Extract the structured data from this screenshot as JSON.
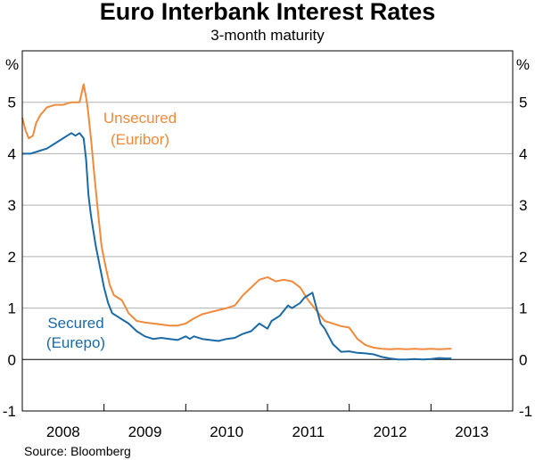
{
  "chart_data": {
    "type": "line",
    "title": "Euro Interbank Interest Rates",
    "subtitle": "3-month maturity",
    "y_unit_left": "%",
    "y_unit_right": "%",
    "ylim": [
      -1,
      6
    ],
    "yticks": [
      -1,
      0,
      1,
      2,
      3,
      4,
      5
    ],
    "xlim": [
      2007.5,
      2013.5
    ],
    "xtick_labels": [
      {
        "label": "2008",
        "x": 2008.0
      },
      {
        "label": "2009",
        "x": 2009.0
      },
      {
        "label": "2010",
        "x": 2010.0
      },
      {
        "label": "2011",
        "x": 2011.0
      },
      {
        "label": "2012",
        "x": 2012.0
      },
      {
        "label": "2013",
        "x": 2013.0
      }
    ],
    "year_dividers": [
      2008.5,
      2009.5,
      2010.5,
      2011.5,
      2012.5
    ],
    "gridlines": true,
    "source": "Source: Bloomberg",
    "annotations": [
      {
        "series": "Unsecured",
        "line1": "Unsecured",
        "line2": "(Euribor)"
      },
      {
        "series": "Secured",
        "line1": "Secured",
        "line2": "(Eurepo)"
      }
    ],
    "series": [
      {
        "name": "Unsecured",
        "label": "Unsecured (Euribor)",
        "color": "#f08a3c",
        "x": [
          2007.5,
          2007.54,
          2007.58,
          2007.63,
          2007.67,
          2007.72,
          2007.8,
          2007.9,
          2008.0,
          2008.1,
          2008.2,
          2008.25,
          2008.28,
          2008.3,
          2008.34,
          2008.38,
          2008.43,
          2008.47,
          2008.52,
          2008.57,
          2008.62,
          2008.67,
          2008.72,
          2008.8,
          2008.9,
          2009.0,
          2009.1,
          2009.2,
          2009.3,
          2009.4,
          2009.5,
          2009.6,
          2009.7,
          2009.8,
          2009.9,
          2010.0,
          2010.1,
          2010.2,
          2010.3,
          2010.4,
          2010.5,
          2010.6,
          2010.7,
          2010.8,
          2010.9,
          2011.0,
          2011.1,
          2011.2,
          2011.3,
          2011.4,
          2011.5,
          2011.6,
          2011.7,
          2011.8,
          2011.9,
          2012.0,
          2012.1,
          2012.2,
          2012.3,
          2012.4,
          2012.5,
          2012.6,
          2012.7,
          2012.75
        ],
        "y": [
          4.7,
          4.45,
          4.3,
          4.35,
          4.6,
          4.75,
          4.9,
          4.95,
          4.95,
          5.0,
          5.0,
          5.35,
          5.1,
          4.9,
          4.3,
          3.6,
          2.8,
          2.2,
          1.8,
          1.45,
          1.25,
          1.2,
          1.15,
          0.9,
          0.75,
          0.72,
          0.7,
          0.68,
          0.66,
          0.66,
          0.7,
          0.8,
          0.88,
          0.92,
          0.96,
          1.0,
          1.05,
          1.25,
          1.4,
          1.55,
          1.6,
          1.52,
          1.55,
          1.52,
          1.4,
          1.15,
          0.95,
          0.75,
          0.7,
          0.65,
          0.62,
          0.4,
          0.28,
          0.23,
          0.21,
          0.2,
          0.21,
          0.2,
          0.21,
          0.2,
          0.21,
          0.2,
          0.21,
          0.21
        ]
      },
      {
        "name": "Secured",
        "label": "Secured (Eurepo)",
        "color": "#1b6aa6",
        "x": [
          2007.5,
          2007.6,
          2007.7,
          2007.8,
          2007.9,
          2008.0,
          2008.05,
          2008.1,
          2008.15,
          2008.2,
          2008.25,
          2008.28,
          2008.31,
          2008.34,
          2008.37,
          2008.4,
          2008.45,
          2008.5,
          2008.55,
          2008.6,
          2008.65,
          2008.7,
          2008.8,
          2008.9,
          2009.0,
          2009.1,
          2009.2,
          2009.3,
          2009.4,
          2009.5,
          2009.55,
          2009.6,
          2009.7,
          2009.8,
          2009.9,
          2010.0,
          2010.1,
          2010.2,
          2010.3,
          2010.4,
          2010.5,
          2010.55,
          2010.6,
          2010.65,
          2010.7,
          2010.75,
          2010.8,
          2010.85,
          2010.9,
          2010.95,
          2011.0,
          2011.05,
          2011.1,
          2011.15,
          2011.2,
          2011.3,
          2011.4,
          2011.5,
          2011.6,
          2011.7,
          2011.8,
          2011.9,
          2012.0,
          2012.1,
          2012.2,
          2012.3,
          2012.4,
          2012.5,
          2012.6,
          2012.7,
          2012.75
        ],
        "y": [
          4.0,
          4.0,
          4.05,
          4.1,
          4.2,
          4.3,
          4.35,
          4.4,
          4.35,
          4.4,
          4.3,
          3.9,
          3.2,
          2.8,
          2.5,
          2.2,
          1.8,
          1.4,
          1.1,
          0.9,
          0.85,
          0.8,
          0.7,
          0.55,
          0.45,
          0.4,
          0.42,
          0.4,
          0.38,
          0.45,
          0.4,
          0.45,
          0.4,
          0.38,
          0.36,
          0.4,
          0.42,
          0.5,
          0.55,
          0.7,
          0.6,
          0.75,
          0.8,
          0.85,
          0.95,
          1.05,
          1.0,
          1.05,
          1.1,
          1.2,
          1.25,
          1.3,
          1.0,
          0.7,
          0.6,
          0.3,
          0.15,
          0.16,
          0.13,
          0.12,
          0.1,
          0.05,
          0.02,
          0.0,
          0.0,
          0.01,
          0.0,
          0.01,
          0.03,
          0.02,
          0.02
        ]
      }
    ]
  }
}
